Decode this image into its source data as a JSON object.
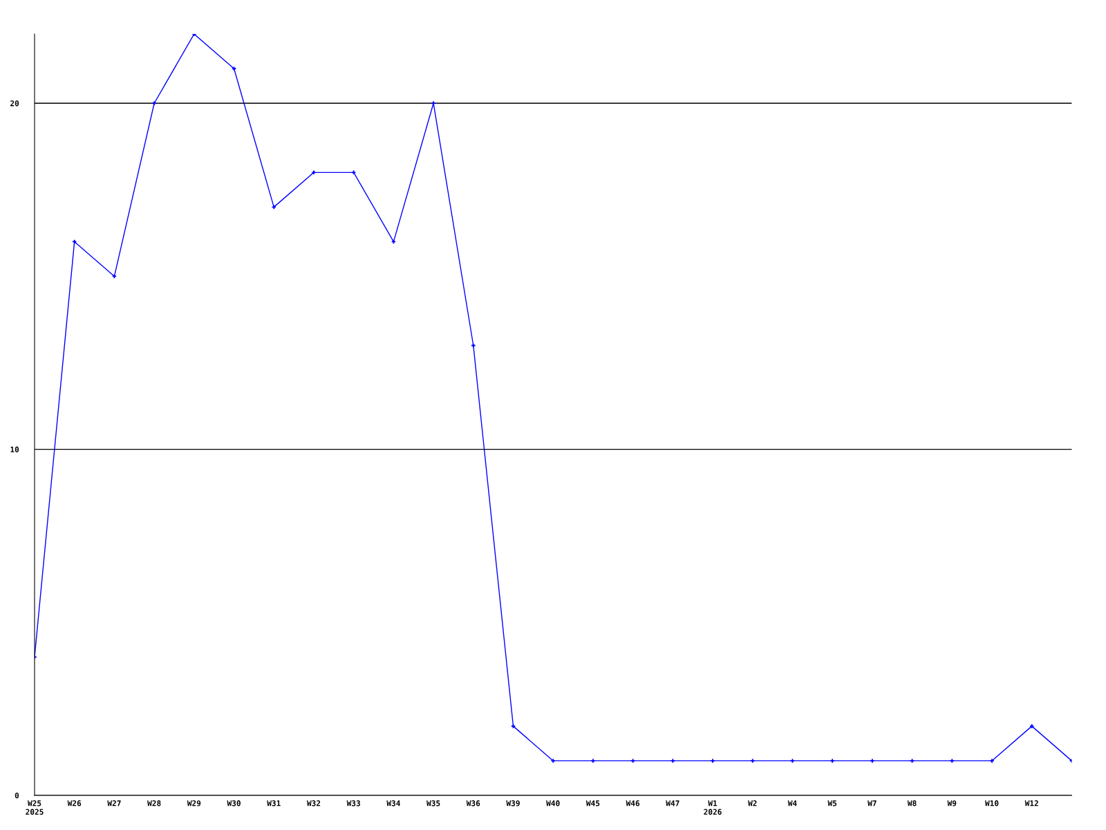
{
  "chart_data": {
    "type": "line",
    "categories": [
      "W25\n2025",
      "W26",
      "W27",
      "W28",
      "W29",
      "W30",
      "W31",
      "W32",
      "W33",
      "W34",
      "W35",
      "W36",
      "W39",
      "W40",
      "W45",
      "W46",
      "W47",
      "W1\n2026",
      "W2",
      "W4",
      "W5",
      "W7",
      "W8",
      "W9",
      "W10",
      "W12",
      null
    ],
    "series": [
      {
        "color": "#0000ff",
        "values": [
          4,
          16,
          15,
          20,
          22,
          21,
          17,
          18,
          18,
          16,
          20,
          13,
          2,
          1,
          1,
          1,
          1,
          1,
          1,
          1,
          1,
          1,
          1,
          1,
          1,
          2,
          1
        ]
      }
    ],
    "ylim": [
      0,
      22
    ],
    "yticks": [
      0,
      10,
      20
    ],
    "grid": "y",
    "marker": "cross",
    "line_style": "solid"
  }
}
